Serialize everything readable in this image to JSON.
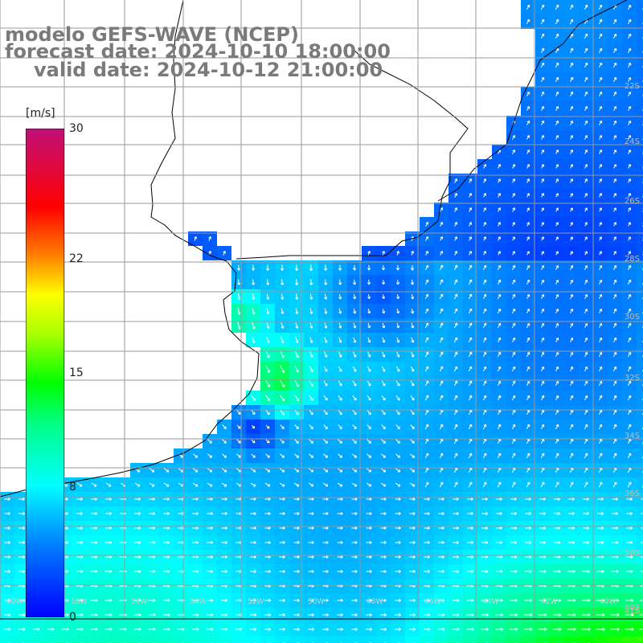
{
  "title": {
    "model": "modelo GEFS-WAVE (NCEP)",
    "forecast": "forecast date: 2024-10-10 18:00:00",
    "valid": "valid date: 2024-10-12 21:00:00"
  },
  "colorbar": {
    "unit": "[m/s]",
    "min": 0,
    "max": 30,
    "ticks": [
      {
        "value": 0,
        "label": "0"
      },
      {
        "value": 8,
        "label": "8"
      },
      {
        "value": 15,
        "label": "15"
      },
      {
        "value": 22,
        "label": "22"
      },
      {
        "value": 30,
        "label": "30"
      }
    ]
  },
  "lat_labels": [
    {
      "label": "22S"
    },
    {
      "label": "24S"
    },
    {
      "label": "26S"
    },
    {
      "label": "28S"
    },
    {
      "label": "30S"
    },
    {
      "label": "32S"
    },
    {
      "label": "34S"
    },
    {
      "label": "36S"
    },
    {
      "label": "38S"
    },
    {
      "label": "40S"
    },
    {
      "label": "41S"
    }
  ],
  "lon_labels": [
    "60W",
    "58W",
    "56W",
    "54W",
    "52W",
    "50W",
    "48W",
    "46W",
    "44W",
    "42W",
    "40W"
  ],
  "colors": {
    "land": "#ffffff",
    "grid": "#9a9a9a",
    "coast": "#000000",
    "arrow": "#ffffff",
    "title": "#7a7a7a"
  }
}
